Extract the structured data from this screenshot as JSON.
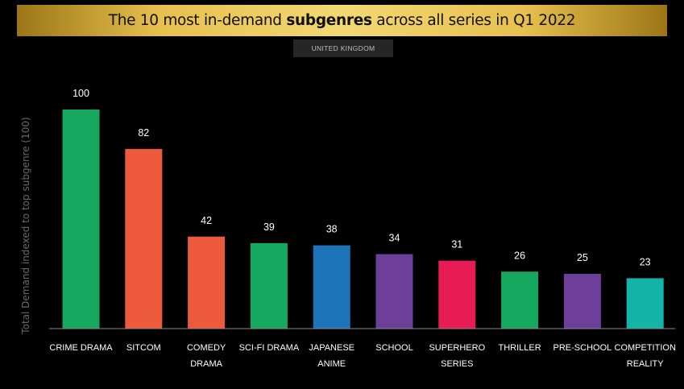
{
  "header": {
    "title_pre": "The 10 most in-demand ",
    "title_bold": "subgenres",
    "title_post": " across all series in Q1 2022",
    "region": "UNITED KINGDOM"
  },
  "chart_data": {
    "type": "bar",
    "ylabel": "Total Demand indexed to top subgenre (100)",
    "xlabel": "",
    "ylim": [
      0,
      100
    ],
    "grid": false,
    "categories": [
      [
        "CRIME DRAMA"
      ],
      [
        "SITCOM"
      ],
      [
        "COMEDY",
        "DRAMA"
      ],
      [
        "SCI-FI DRAMA"
      ],
      [
        "JAPANESE",
        "ANIME"
      ],
      [
        "SCHOOL"
      ],
      [
        "SUPERHERO",
        "SERIES"
      ],
      [
        "THRILLER"
      ],
      [
        "PRE-SCHOOL"
      ],
      [
        "COMPETITION",
        "REALITY"
      ]
    ],
    "values": [
      100,
      82,
      42,
      39,
      38,
      34,
      31,
      26,
      25,
      23
    ],
    "colors": [
      "#17a85f",
      "#ec5a3b",
      "#ec5a3b",
      "#17a85f",
      "#1e74b8",
      "#6d3f99",
      "#e81c55",
      "#17a85f",
      "#6d3f99",
      "#14b3a8"
    ]
  }
}
